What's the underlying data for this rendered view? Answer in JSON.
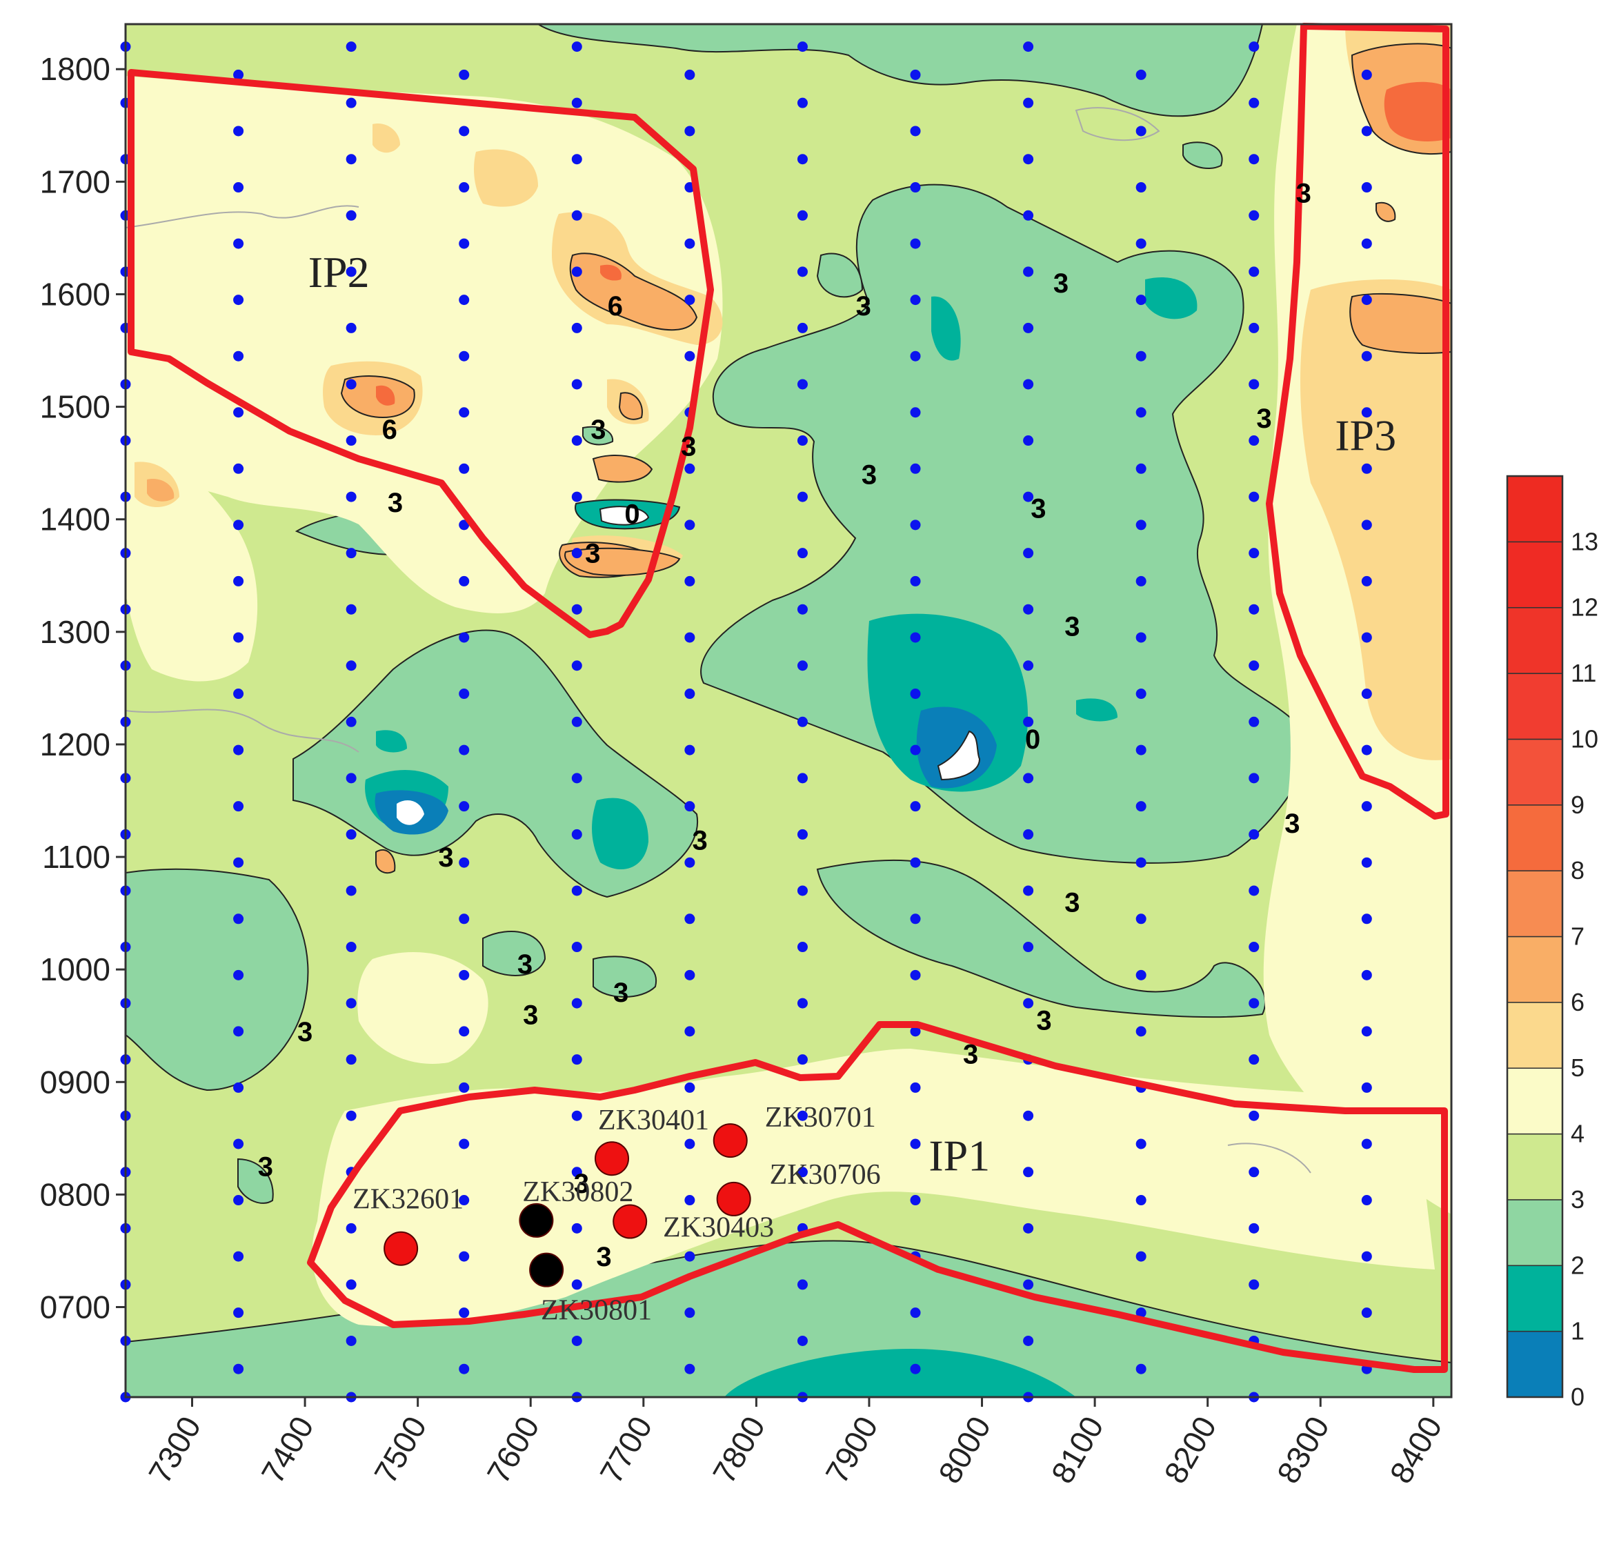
{
  "x_ticks": [
    "7300",
    "7400",
    "7500",
    "7600",
    "7700",
    "7800",
    "7900",
    "8000",
    "8100",
    "8200",
    "8300",
    "8400"
  ],
  "y_ticks": [
    "0700",
    "0800",
    "0900",
    "1000",
    "1100",
    "1200",
    "1300",
    "1400",
    "1500",
    "1600",
    "1700",
    "1800"
  ],
  "x_range": [
    7241,
    8416
  ],
  "y_range": [
    620,
    1840
  ],
  "zones": [
    {
      "label": "IP1",
      "x": 7980,
      "y": 835
    },
    {
      "label": "IP2",
      "x": 7430,
      "y": 1620
    },
    {
      "label": "IP3",
      "x": 8340,
      "y": 1475
    }
  ],
  "wells": [
    {
      "name": "ZK32601",
      "x": 7485,
      "y": 752,
      "status": "red"
    },
    {
      "name": "ZK30802",
      "x": 7605,
      "y": 777,
      "status": "black"
    },
    {
      "name": "ZK30801",
      "x": 7614,
      "y": 733,
      "status": "black"
    },
    {
      "name": "ZK30401",
      "x": 7672,
      "y": 832,
      "status": "red"
    },
    {
      "name": "ZK30403",
      "x": 7688,
      "y": 776,
      "status": "red"
    },
    {
      "name": "ZK30701",
      "x": 7777,
      "y": 848,
      "status": "red"
    },
    {
      "name": "ZK30706",
      "x": 7780,
      "y": 796,
      "status": "red"
    }
  ],
  "contour_labels": [
    {
      "text": "6",
      "x": 7675,
      "y": 1590
    },
    {
      "text": "6",
      "x": 7475,
      "y": 1480
    },
    {
      "text": "3",
      "x": 7660,
      "y": 1480
    },
    {
      "text": "3",
      "x": 7740,
      "y": 1465
    },
    {
      "text": "3",
      "x": 7480,
      "y": 1415
    },
    {
      "text": "0",
      "x": 7690,
      "y": 1405
    },
    {
      "text": "3",
      "x": 7655,
      "y": 1370
    },
    {
      "text": "3",
      "x": 7895,
      "y": 1590
    },
    {
      "text": "3",
      "x": 8070,
      "y": 1610
    },
    {
      "text": "3",
      "x": 8285,
      "y": 1690
    },
    {
      "text": "3",
      "x": 8250,
      "y": 1490
    },
    {
      "text": "3",
      "x": 7900,
      "y": 1440
    },
    {
      "text": "3",
      "x": 8050,
      "y": 1410
    },
    {
      "text": "3",
      "x": 8080,
      "y": 1305
    },
    {
      "text": "0",
      "x": 8045,
      "y": 1205
    },
    {
      "text": "3",
      "x": 7525,
      "y": 1100
    },
    {
      "text": "3",
      "x": 7750,
      "y": 1115
    },
    {
      "text": "3",
      "x": 8275,
      "y": 1130
    },
    {
      "text": "3",
      "x": 8080,
      "y": 1060
    },
    {
      "text": "3",
      "x": 7595,
      "y": 1005
    },
    {
      "text": "3",
      "x": 7680,
      "y": 980
    },
    {
      "text": "3",
      "x": 7600,
      "y": 960
    },
    {
      "text": "3",
      "x": 7400,
      "y": 945
    },
    {
      "text": "3",
      "x": 8055,
      "y": 955
    },
    {
      "text": "3",
      "x": 7990,
      "y": 925
    },
    {
      "text": "3",
      "x": 7365,
      "y": 825
    },
    {
      "text": "3",
      "x": 7645,
      "y": 810
    },
    {
      "text": "3",
      "x": 7665,
      "y": 745
    }
  ],
  "colorbar": {
    "ticks": [
      "0",
      "1",
      "2",
      "3",
      "4",
      "5",
      "6",
      "7",
      "8",
      "9",
      "10",
      "11",
      "12",
      "13"
    ],
    "colors": [
      "#0a7fb8",
      "#00b29b",
      "#8fd6a2",
      "#cfe98f",
      "#fbfbc8",
      "#fbd98d",
      "#f9ae66",
      "#f78c52",
      "#f56b3d",
      "#f3523a",
      "#f13d30",
      "#ef3429",
      "#ef2b24",
      "#ee2b22"
    ]
  },
  "colors": {
    "boundary": "#ee1c24",
    "grid_point": "#0b14ee",
    "well_active": "#ee1111",
    "well_inactive": "#000000"
  }
}
